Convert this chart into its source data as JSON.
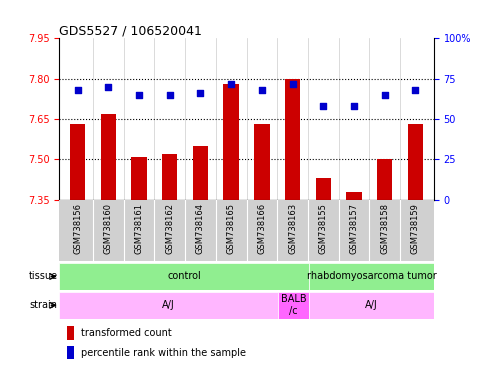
{
  "title": "GDS5527 / 106520041",
  "samples": [
    "GSM738156",
    "GSM738160",
    "GSM738161",
    "GSM738162",
    "GSM738164",
    "GSM738165",
    "GSM738166",
    "GSM738163",
    "GSM738155",
    "GSM738157",
    "GSM738158",
    "GSM738159"
  ],
  "transformed_counts": [
    7.63,
    7.67,
    7.51,
    7.52,
    7.55,
    7.78,
    7.63,
    7.8,
    7.43,
    7.38,
    7.5,
    7.63
  ],
  "percentile_ranks": [
    68,
    70,
    65,
    65,
    66,
    72,
    68,
    72,
    58,
    58,
    65,
    68
  ],
  "ylim_left": [
    7.35,
    7.95
  ],
  "ylim_right": [
    0,
    100
  ],
  "yticks_left": [
    7.35,
    7.5,
    7.65,
    7.8,
    7.95
  ],
  "yticks_right": [
    0,
    25,
    50,
    75,
    100
  ],
  "bar_color": "#CC0000",
  "dot_color": "#0000CC",
  "bar_width": 0.5,
  "tissue_row_label": "tissue",
  "strain_row_label": "strain",
  "tissue_defs": [
    {
      "text": "control",
      "start": 0,
      "end": 7,
      "color": "#90EE90"
    },
    {
      "text": "rhabdomyosarcoma tumor",
      "start": 8,
      "end": 11,
      "color": "#90EE90"
    }
  ],
  "strain_defs": [
    {
      "text": "A/J",
      "start": 0,
      "end": 6,
      "color": "#FFB6FF"
    },
    {
      "text": "BALB\n/c",
      "start": 7,
      "end": 7,
      "color": "#FF66FF"
    },
    {
      "text": "A/J",
      "start": 8,
      "end": 11,
      "color": "#FFB6FF"
    }
  ],
  "legend_items": [
    {
      "label": "transformed count",
      "color": "#CC0000",
      "marker": "s"
    },
    {
      "label": "percentile rank within the sample",
      "color": "#0000CC",
      "marker": "s"
    }
  ],
  "dotted_lines": [
    7.5,
    7.65,
    7.8
  ],
  "xtick_bg": "#D0D0D0",
  "figsize": [
    4.93,
    3.84
  ],
  "dpi": 100
}
